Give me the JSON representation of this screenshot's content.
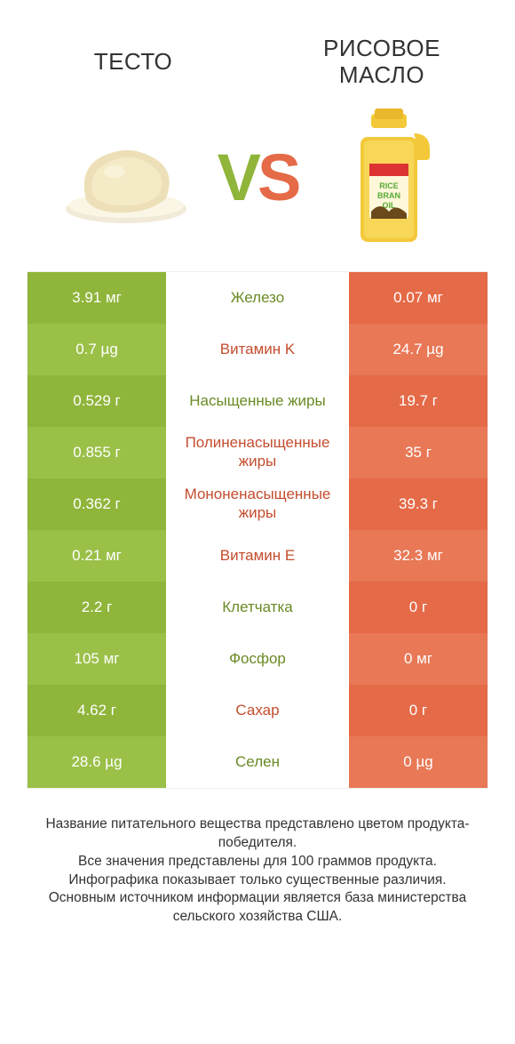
{
  "colors": {
    "left_bar": "#8fb53a",
    "right_bar": "#e56a47",
    "left_bar_alt": "#9ac048",
    "right_bar_alt": "#e87856",
    "mid_green_text": "#6a8a25",
    "mid_red_text": "#c44d2e",
    "bg": "#ffffff"
  },
  "header": {
    "left_title": "ТЕСТО",
    "right_title_line1": "РИСОВОЕ",
    "right_title_line2": "МАСЛО",
    "vs_v": "V",
    "vs_s": "S"
  },
  "rows": [
    {
      "left": "3.91 мг",
      "mid": "Железо",
      "right": "0.07 мг",
      "winner": "left"
    },
    {
      "left": "0.7 µg",
      "mid": "Витамин K",
      "right": "24.7 µg",
      "winner": "right"
    },
    {
      "left": "0.529 г",
      "mid": "Насыщенные жиры",
      "right": "19.7 г",
      "winner": "left"
    },
    {
      "left": "0.855 г",
      "mid": "Полиненасыщенные жиры",
      "right": "35 г",
      "winner": "right"
    },
    {
      "left": "0.362 г",
      "mid": "Мононенасыщенные жиры",
      "right": "39.3 г",
      "winner": "right"
    },
    {
      "left": "0.21 мг",
      "mid": "Витамин E",
      "right": "32.3 мг",
      "winner": "right"
    },
    {
      "left": "2.2 г",
      "mid": "Клетчатка",
      "right": "0 г",
      "winner": "left"
    },
    {
      "left": "105 мг",
      "mid": "Фосфор",
      "right": "0 мг",
      "winner": "left"
    },
    {
      "left": "4.62 г",
      "mid": "Сахар",
      "right": "0 г",
      "winner": "right"
    },
    {
      "left": "28.6 µg",
      "mid": "Селен",
      "right": "0 µg",
      "winner": "left"
    }
  ],
  "footnote": {
    "l1": "Название питательного вещества представлено цветом продукта-победителя.",
    "l2": "Все значения представлены для 100 граммов продукта.",
    "l3": "Инфографика показывает только существенные различия.",
    "l4": "Основным источником информации является база министерства сельского хозяйства США."
  }
}
